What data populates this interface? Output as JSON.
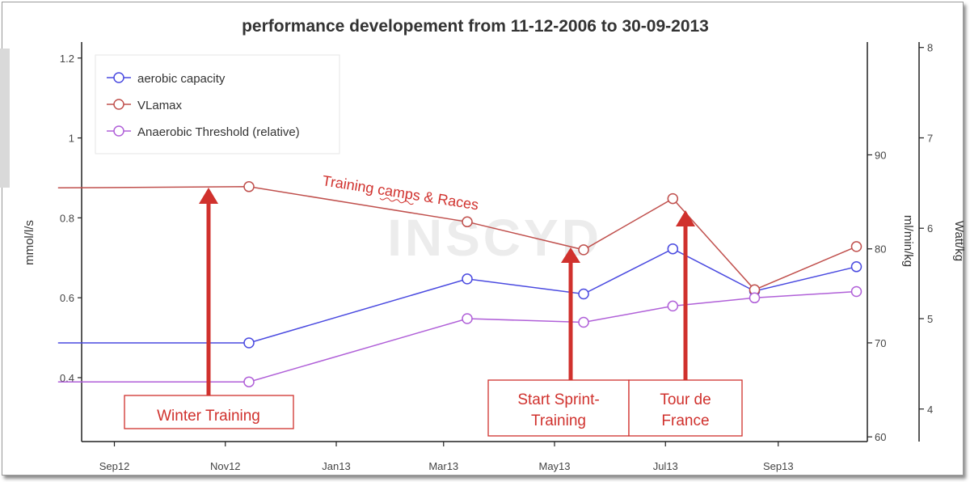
{
  "chart_data": {
    "type": "line",
    "title": "performance developement from 11-12-2006 to 30-09-2013",
    "watermark": "INSCYD",
    "x_ticks": [
      "Sep12",
      "Nov12",
      "Jan13",
      "Mar13",
      "May13",
      "Jul13",
      "Sep13"
    ],
    "x": [
      "2012-08-01",
      "2012-11-14",
      "2013-03-14",
      "2013-05-17",
      "2013-07-05",
      "2013-08-19",
      "2013-10-14"
    ],
    "ylabel_left": "mmol/l/s",
    "ylabel_right1": "ml/min/kg",
    "ylabel_right2": "Watt/kg",
    "y_left_ticks": [
      "0.4",
      "0.6",
      "0.8",
      "1",
      "1.2"
    ],
    "y_right1_ticks": [
      "60",
      "70",
      "80",
      "90"
    ],
    "y_right2_ticks": [
      "4",
      "5",
      "6",
      "7",
      "8"
    ],
    "ylim_left": [
      0.24,
      1.24
    ],
    "ylim_right1": [
      59.5,
      102
    ],
    "ylim_right2": [
      3.64,
      8.06
    ],
    "series": [
      {
        "name": "aerobic capacity",
        "axis": "ml/min/kg",
        "color": "#4a4ae0",
        "values": [
          70.0,
          70.0,
          76.8,
          75.2,
          80.0,
          75.5,
          78.1
        ],
        "markers": [
          false,
          true,
          true,
          true,
          true,
          true,
          true
        ]
      },
      {
        "name": "VLamax",
        "axis": "mmol/l/s",
        "color": "#c0504d",
        "values": [
          0.875,
          0.878,
          0.79,
          0.72,
          0.848,
          0.62,
          0.728
        ],
        "markers": [
          false,
          true,
          true,
          true,
          true,
          true,
          true
        ]
      },
      {
        "name": "Anaerobic Threshold (relative)",
        "axis": "Watt/kg",
        "color": "#b060d8",
        "values": [
          4.3,
          4.3,
          5.0,
          4.96,
          5.14,
          5.23,
          5.3
        ],
        "markers": [
          false,
          true,
          true,
          true,
          true,
          true,
          true
        ]
      }
    ],
    "annotations": [
      {
        "text": "Winter Training"
      },
      {
        "text_lines": [
          "Start Sprint-",
          "Training"
        ]
      },
      {
        "text_lines": [
          "Tour de",
          "France"
        ]
      },
      {
        "text": "Training camps  & Races"
      }
    ],
    "grid": false,
    "legend": "top-left"
  }
}
